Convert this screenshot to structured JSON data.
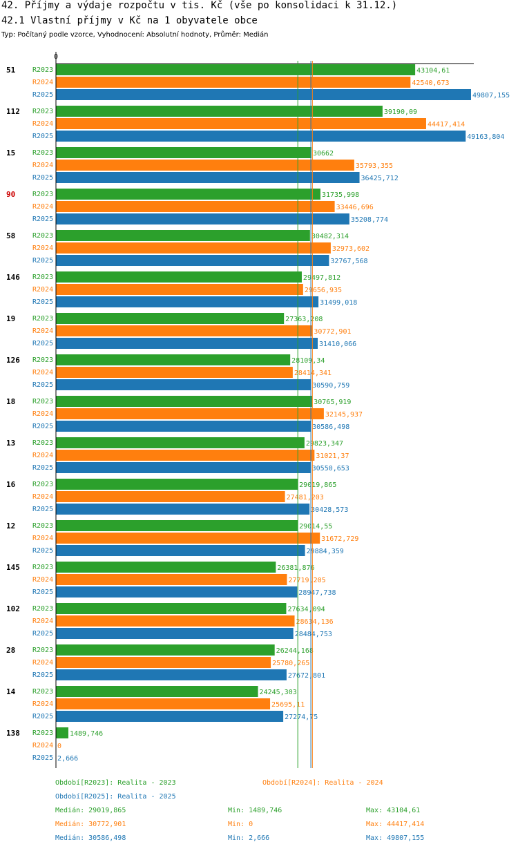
{
  "header": {
    "title": "42. Příjmy a výdaje rozpočtu v tis. Kč (vše po konsolidaci k 31.12.)",
    "subtitle": "42.1 Vlastní příjmy v Kč na 1 obyvatele obce",
    "meta": "Typ: Počítaný podle vzorce, Vyhodnocení: Absolutní hodnoty, Průměr: Medián"
  },
  "colors": {
    "R2023": "#2ca02c",
    "R2024": "#ff7f0e",
    "R2025": "#1f77b4",
    "highlight": "#cc0000",
    "text": "#000000"
  },
  "chart_data": {
    "type": "bar",
    "orientation": "horizontal",
    "x_axis_tick": "0",
    "xlim": [
      0,
      49807.155
    ],
    "highlight_category": "90",
    "series_names": [
      "R2023",
      "R2024",
      "R2025"
    ],
    "groups": [
      {
        "label": "51",
        "values": [
          43104.61,
          42540.673,
          49807.155
        ],
        "labels": [
          "43104,61",
          "42540,673",
          "49807,155"
        ]
      },
      {
        "label": "112",
        "values": [
          39190.09,
          44417.414,
          49163.804
        ],
        "labels": [
          "39190,09",
          "44417,414",
          "49163,804"
        ]
      },
      {
        "label": "15",
        "values": [
          30662,
          35793.355,
          36425.712
        ],
        "labels": [
          "30662",
          "35793,355",
          "36425,712"
        ]
      },
      {
        "label": "90",
        "values": [
          31735.998,
          33446.696,
          35208.774
        ],
        "labels": [
          "31735,998",
          "33446,696",
          "35208,774"
        ]
      },
      {
        "label": "58",
        "values": [
          30482.314,
          32973.602,
          32767.568
        ],
        "labels": [
          "30482,314",
          "32973,602",
          "32767,568"
        ]
      },
      {
        "label": "146",
        "values": [
          29497.812,
          29656.935,
          31499.018
        ],
        "labels": [
          "29497,812",
          "29656,935",
          "31499,018"
        ]
      },
      {
        "label": "19",
        "values": [
          27363.208,
          30772.901,
          31410.066
        ],
        "labels": [
          "27363,208",
          "30772,901",
          "31410,066"
        ]
      },
      {
        "label": "126",
        "values": [
          28109.34,
          28414.341,
          30590.759
        ],
        "labels": [
          "28109,34",
          "28414,341",
          "30590,759"
        ]
      },
      {
        "label": "18",
        "values": [
          30765.919,
          32145.937,
          30586.498
        ],
        "labels": [
          "30765,919",
          "32145,937",
          "30586,498"
        ]
      },
      {
        "label": "13",
        "values": [
          29823.347,
          31021.37,
          30550.653
        ],
        "labels": [
          "29823,347",
          "31021,37",
          "30550,653"
        ]
      },
      {
        "label": "16",
        "values": [
          29019.865,
          27481.203,
          30428.573
        ],
        "labels": [
          "29019,865",
          "27481,203",
          "30428,573"
        ]
      },
      {
        "label": "12",
        "values": [
          29014.55,
          31672.729,
          29884.359
        ],
        "labels": [
          "29014,55",
          "31672,729",
          "29884,359"
        ]
      },
      {
        "label": "145",
        "values": [
          26381.876,
          27719.205,
          28947.738
        ],
        "labels": [
          "26381,876",
          "27719,205",
          "28947,738"
        ]
      },
      {
        "label": "102",
        "values": [
          27634.094,
          28634.136,
          28484.753
        ],
        "labels": [
          "27634,094",
          "28634,136",
          "28484,753"
        ]
      },
      {
        "label": "28",
        "values": [
          26244.168,
          25780.265,
          27672.801
        ],
        "labels": [
          "26244,168",
          "25780,265",
          "27672,801"
        ]
      },
      {
        "label": "14",
        "values": [
          24245.303,
          25695.11,
          27274.75
        ],
        "labels": [
          "24245,303",
          "25695,11",
          "27274,75"
        ]
      },
      {
        "label": "138",
        "values": [
          1489.746,
          0,
          2.666
        ],
        "labels": [
          "1489,746",
          "0",
          "2,666"
        ]
      }
    ],
    "medians": [
      29019.865,
      30772.901,
      30586.498
    ]
  },
  "legend": {
    "period_r2023": "Období[R2023]: Realita - 2023",
    "period_r2024": "Období[R2024]: Realita - 2024",
    "period_r2025": "Období[R2025]: Realita - 2025",
    "stats": [
      {
        "median": "Medián: 29019,865",
        "min": "Min: 1489,746",
        "max": "Max: 43104,61"
      },
      {
        "median": "Medián: 30772,901",
        "min": "Min: 0",
        "max": "Max: 44417,414"
      },
      {
        "median": "Medián: 30586,498",
        "min": "Min: 2,666",
        "max": "Max: 49807,155"
      }
    ]
  }
}
